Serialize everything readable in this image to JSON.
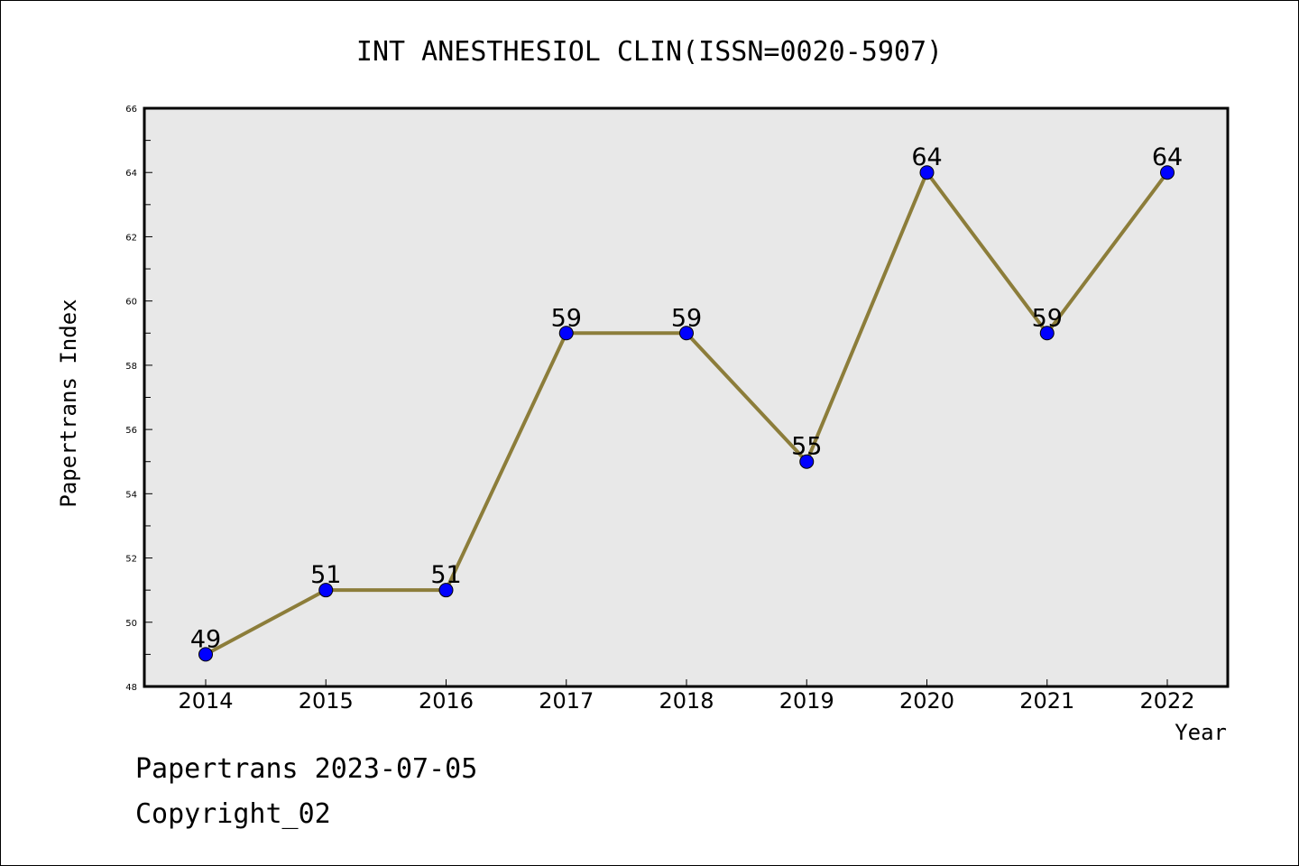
{
  "chart_data": {
    "type": "line",
    "title": "INT ANESTHESIOL CLIN(ISSN=0020-5907)",
    "xlabel": "Year",
    "ylabel": "Papertrans Index",
    "categories": [
      "2014",
      "2015",
      "2016",
      "2017",
      "2018",
      "2019",
      "2020",
      "2021",
      "2022"
    ],
    "values": [
      49,
      51,
      51,
      59,
      59,
      55,
      64,
      59,
      64
    ],
    "data_labels": [
      "49",
      "51",
      "51",
      "59",
      "59",
      "55",
      "64",
      "59",
      "64"
    ],
    "ylim": [
      48,
      66
    ],
    "yticks": [
      "48",
      "50",
      "52",
      "54",
      "56",
      "58",
      "60",
      "62",
      "64",
      "66"
    ],
    "grid": false,
    "legend": "none",
    "colors": {
      "line": "#8c7d3a",
      "marker": "#0000ff",
      "plot_background": "#e8e8e8",
      "axis": "#000000"
    }
  },
  "footer": {
    "line1": "Papertrans 2023-07-05",
    "line2": "Copyright_02"
  }
}
